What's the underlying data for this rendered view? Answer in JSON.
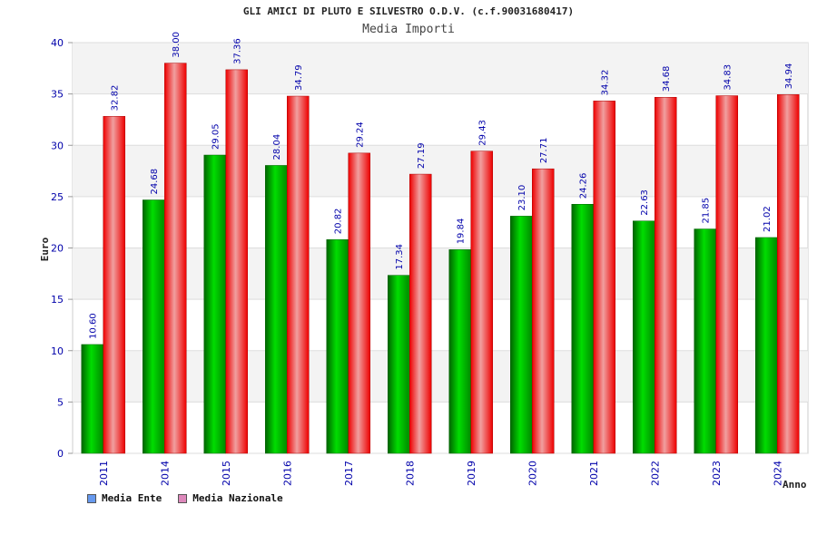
{
  "chart_data": {
    "type": "bar",
    "title": "GLI AMICI DI PLUTO E SILVESTRO O.D.V. (c.f.90031680417)",
    "subtitle": "Media Importi",
    "ylabel": "Euro",
    "xlabel": "Anno",
    "ylim": [
      0,
      40
    ],
    "yticks": [
      0,
      5,
      10,
      15,
      20,
      25,
      30,
      35,
      40
    ],
    "categories": [
      "2011",
      "2014",
      "2015",
      "2016",
      "2017",
      "2018",
      "2019",
      "2020",
      "2021",
      "2022",
      "2023",
      "2024"
    ],
    "series": [
      {
        "name": "Media Ente",
        "color": "#00a000",
        "legend_color": "#6699ee",
        "values": [
          10.6,
          24.68,
          29.05,
          28.04,
          20.82,
          17.34,
          19.84,
          23.1,
          24.26,
          22.63,
          21.85,
          21.02
        ],
        "labels": [
          "10.60",
          "24.68",
          "29.05",
          "28.04",
          "20.82",
          "17.34",
          "19.84",
          "23.10",
          "24.26",
          "22.63",
          "21.85",
          "21.02"
        ]
      },
      {
        "name": "Media Nazionale",
        "color": "#ee0000",
        "legend_color": "#dd88bb",
        "values": [
          32.82,
          38.0,
          37.36,
          34.79,
          29.24,
          27.19,
          29.43,
          27.71,
          34.32,
          34.68,
          34.83,
          34.94
        ],
        "labels": [
          "32.82",
          "38.00",
          "37.36",
          "34.79",
          "29.24",
          "27.19",
          "29.43",
          "27.71",
          "34.32",
          "34.68",
          "34.83",
          "34.94"
        ]
      }
    ],
    "grid": true,
    "legend_position": "bottom-left"
  }
}
